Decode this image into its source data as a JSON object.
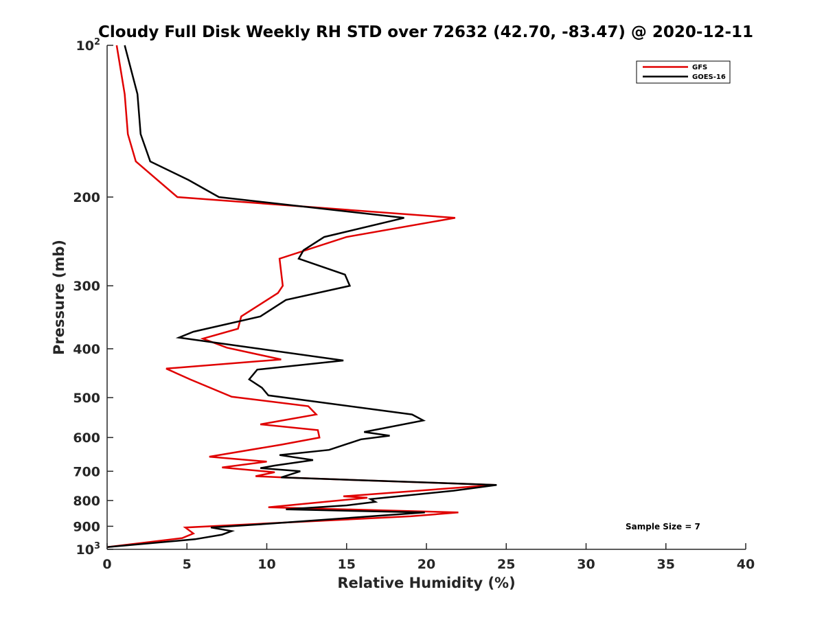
{
  "chart_data": {
    "type": "line",
    "title": "Cloudy Full Disk Weekly RH STD over 72632 (42.70, -83.47) @ 2020-12-11",
    "xlabel": "Relative Humidity (%)",
    "ylabel": "Pressure (mb)",
    "xlim": [
      0,
      40
    ],
    "ylim": [
      100,
      1000
    ],
    "y_scale": "log",
    "y_reversed": true,
    "x_ticks": [
      "0",
      "5",
      "10",
      "15",
      "20",
      "25",
      "30",
      "35",
      "40"
    ],
    "y_ticks": [
      {
        "value": 100,
        "base": "10",
        "exp": "2"
      },
      {
        "value": 200,
        "label": "200"
      },
      {
        "value": 300,
        "label": "300"
      },
      {
        "value": 400,
        "label": "400"
      },
      {
        "value": 500,
        "label": "500"
      },
      {
        "value": 600,
        "label": "600"
      },
      {
        "value": 700,
        "label": "700"
      },
      {
        "value": 800,
        "label": "800"
      },
      {
        "value": 900,
        "label": "900"
      },
      {
        "value": 1000,
        "base": "10",
        "exp": "3"
      }
    ],
    "legend_position": "top-right",
    "annotation": "Sample Size = 7",
    "series": [
      {
        "name": "GFS",
        "color": "#e00000",
        "points": [
          [
            0.6,
            100
          ],
          [
            1.1,
            125
          ],
          [
            1.3,
            150
          ],
          [
            1.8,
            170
          ],
          [
            4.4,
            200
          ],
          [
            21.8,
            220
          ],
          [
            15.0,
            240
          ],
          [
            10.8,
            265
          ],
          [
            11.0,
            300
          ],
          [
            10.7,
            310
          ],
          [
            8.4,
            345
          ],
          [
            8.2,
            365
          ],
          [
            6.0,
            382
          ],
          [
            7.5,
            398
          ],
          [
            10.9,
            420
          ],
          [
            3.7,
            438
          ],
          [
            5.2,
            460
          ],
          [
            7.8,
            498
          ],
          [
            12.6,
            520
          ],
          [
            13.1,
            540
          ],
          [
            9.6,
            565
          ],
          [
            13.2,
            580
          ],
          [
            13.3,
            600
          ],
          [
            10.9,
            620
          ],
          [
            6.4,
            655
          ],
          [
            10.0,
            670
          ],
          [
            7.2,
            688
          ],
          [
            10.5,
            703
          ],
          [
            9.3,
            716
          ],
          [
            11.0,
            720
          ],
          [
            24.3,
            745
          ],
          [
            14.8,
            785
          ],
          [
            16.3,
            790
          ],
          [
            10.1,
            825
          ],
          [
            22.0,
            845
          ],
          [
            19.0,
            860
          ],
          [
            4.9,
            905
          ],
          [
            5.4,
            930
          ],
          [
            4.7,
            950
          ],
          [
            0.0,
            990
          ]
        ]
      },
      {
        "name": "GOES-16",
        "color": "#000000",
        "points": [
          [
            1.1,
            100
          ],
          [
            1.9,
            125
          ],
          [
            2.1,
            150
          ],
          [
            2.7,
            170
          ],
          [
            5.1,
            185
          ],
          [
            7.0,
            200
          ],
          [
            18.6,
            220
          ],
          [
            13.6,
            240
          ],
          [
            12.3,
            255
          ],
          [
            12.0,
            265
          ],
          [
            14.9,
            285
          ],
          [
            15.2,
            300
          ],
          [
            11.2,
            320
          ],
          [
            9.6,
            345
          ],
          [
            5.4,
            370
          ],
          [
            4.5,
            380
          ],
          [
            14.8,
            422
          ],
          [
            9.4,
            440
          ],
          [
            8.9,
            460
          ],
          [
            9.7,
            478
          ],
          [
            10.1,
            495
          ],
          [
            19.1,
            540
          ],
          [
            19.8,
            555
          ],
          [
            16.1,
            585
          ],
          [
            17.7,
            595
          ],
          [
            15.9,
            605
          ],
          [
            13.9,
            635
          ],
          [
            10.8,
            650
          ],
          [
            12.9,
            665
          ],
          [
            10.5,
            682
          ],
          [
            9.6,
            690
          ],
          [
            12.1,
            700
          ],
          [
            10.9,
            720
          ],
          [
            24.4,
            745
          ],
          [
            21.7,
            765
          ],
          [
            16.5,
            795
          ],
          [
            16.8,
            805
          ],
          [
            15.0,
            818
          ],
          [
            11.2,
            833
          ],
          [
            19.9,
            845
          ],
          [
            10.0,
            890
          ],
          [
            6.5,
            905
          ],
          [
            7.8,
            920
          ],
          [
            7.2,
            935
          ],
          [
            5.5,
            955
          ],
          [
            0.0,
            990
          ]
        ]
      }
    ]
  }
}
